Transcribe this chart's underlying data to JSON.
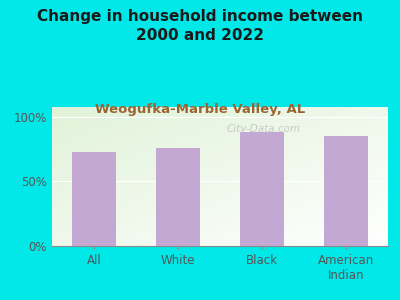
{
  "title": "Change in household income between\n2000 and 2022",
  "subtitle": "Weogufka-Marble Valley, AL",
  "categories": [
    "All",
    "White",
    "Black",
    "American\nIndian"
  ],
  "values": [
    73,
    76,
    88,
    85
  ],
  "bar_color": "#c4a8d4",
  "background_color": "#00e8e8",
  "yticks": [
    0,
    50,
    100
  ],
  "ylabels": [
    "0%",
    "50%",
    "100%"
  ],
  "ylim": [
    0,
    108
  ],
  "title_fontsize": 11,
  "subtitle_fontsize": 9.5,
  "tick_fontsize": 8.5,
  "watermark": "City-Data.com",
  "title_color": "#1a1a1a",
  "subtitle_color": "#996633",
  "tick_color": "#555555"
}
